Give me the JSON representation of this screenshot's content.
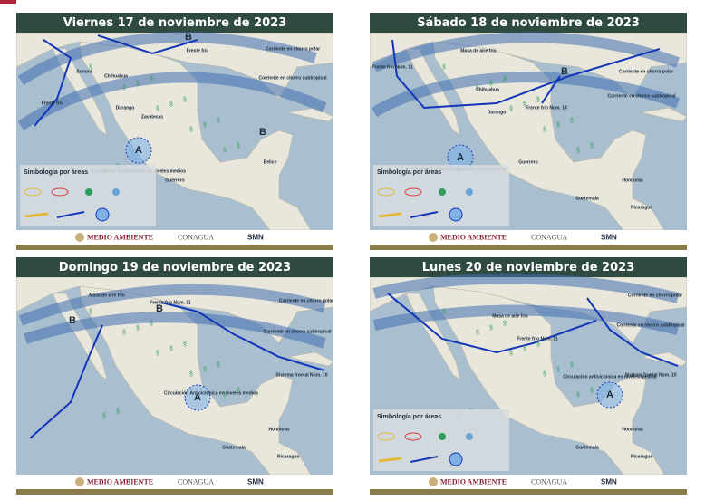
{
  "panels": [
    {
      "title": "Viernes 17 de noviembre de 2023",
      "labels": [
        "B",
        "Frente frío",
        "Corriente en chorro polar",
        "Corriente en chorro subtropical",
        "Frente frío",
        "B",
        "A",
        "Circulación Anticiclónica en niveles medios",
        "Sonora",
        "Chihuahua",
        "Durango",
        "Zacatecas",
        "Guerrero",
        "Belice"
      ],
      "legend_title": "Simbología por áreas"
    },
    {
      "title": "Sábado 18 de noviembre de 2023",
      "labels": [
        "Masa de aire frío",
        "Frente frío Núm. 11",
        "B",
        "Frente frío Núm. 14",
        "Corriente en chorro polar",
        "Corriente en chorro subtropical",
        "A",
        "Circulación anticiclónica en niveles medios",
        "Chihuahua",
        "Durango",
        "Guerrero",
        "Guatemala",
        "Honduras",
        "Nicaragua"
      ],
      "legend_title": "Simbología por áreas"
    },
    {
      "title": "Domingo 19 de noviembre de 2023",
      "labels": [
        "Masa de aire frío",
        "B",
        "Frente frío Núm. 11",
        "B",
        "Corriente en chorro polar",
        "Corriente en chorro subtropical",
        "Sistema frontal Núm. 10",
        "A",
        "Circulación Anticiclónica en niveles medios",
        "Guatemala",
        "Honduras",
        "Nicaragua"
      ]
    },
    {
      "title": "Lunes 20 de noviembre de 2023",
      "labels": [
        "Masa de aire frío",
        "Frente frío Núm. 11",
        "Corriente en chorro polar",
        "Corriente en chorro subtropical",
        "Sistema frontal Núm. 10",
        "A",
        "Circulación anticiclónica en niveles medios",
        "Guatemala",
        "Honduras",
        "Nicaragua"
      ],
      "legend_title": "Simbología por áreas"
    }
  ],
  "footer": {
    "medio_ambiente": "MEDIO AMBIENTE",
    "conagua": "CONAGUA",
    "smn": "SMN"
  }
}
